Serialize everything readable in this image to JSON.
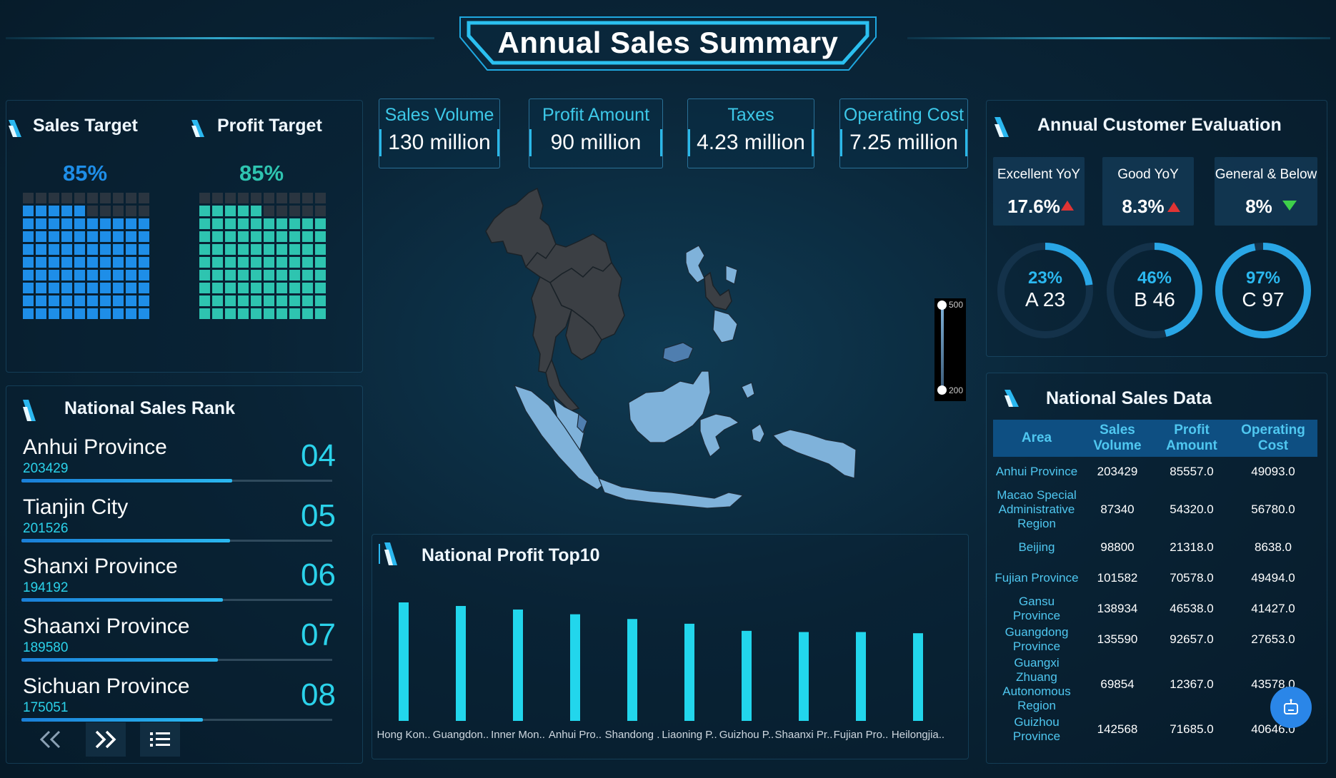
{
  "header": {
    "title": "Annual Sales Summary"
  },
  "targets": {
    "sales": {
      "title": "Sales Target",
      "percent": "85%",
      "fill_fraction": 0.85,
      "color": "#1e8ee8"
    },
    "profit": {
      "title": "Profit Target",
      "percent": "85%",
      "fill_fraction": 0.85,
      "color": "#2ec4b0"
    }
  },
  "rank": {
    "title": "National Sales Rank",
    "items": [
      {
        "name": "Anhui Province",
        "value": "203429",
        "rank": "04"
      },
      {
        "name": "Tianjin City",
        "value": "201526",
        "rank": "05"
      },
      {
        "name": "Shanxi Province",
        "value": "194192",
        "rank": "06"
      },
      {
        "name": "Shaanxi Province",
        "value": "189580",
        "rank": "07"
      },
      {
        "name": "Sichuan Province",
        "value": "175051",
        "rank": "08"
      }
    ],
    "max_value": 300000,
    "nav": {
      "prev_icon": "double-chevron-left-icon",
      "next_icon": "double-chevron-right-icon",
      "list_icon": "list-icon"
    }
  },
  "kpis": [
    {
      "title": "Sales Volume",
      "value": "130 million"
    },
    {
      "title": "Profit Amount",
      "value": "90 million"
    },
    {
      "title": "Taxes",
      "value": "4.23 million"
    },
    {
      "title": "Operating Cost",
      "value": "7.25 million"
    }
  ],
  "map": {
    "legend_max": "500",
    "legend_min": "200",
    "colors": {
      "high": "#7fb2da",
      "low": "#3a3f45"
    }
  },
  "customer": {
    "title": "Annual Customer Evaluation",
    "yoy": [
      {
        "title": "Excellent YoY",
        "value": "17.6%",
        "trend": "up",
        "trend_color": "#e03434"
      },
      {
        "title": "Good YoY",
        "value": "8.3%",
        "trend": "up",
        "trend_color": "#e03434"
      },
      {
        "title": "General & Below",
        "value": "8%",
        "trend": "down",
        "trend_color": "#3ed04a"
      }
    ],
    "rings": [
      {
        "percent_label": "23%",
        "label": "A 23",
        "value": 0.23
      },
      {
        "percent_label": "46%",
        "label": "B 46",
        "value": 0.46
      },
      {
        "percent_label": "97%",
        "label": "C 97",
        "value": 0.97
      }
    ]
  },
  "sales_data": {
    "title": "National Sales Data",
    "columns": [
      "Area",
      "Sales Volume",
      "Profit Amount",
      "Operating Cost"
    ],
    "rows": [
      [
        "Anhui Province",
        "203429",
        "85557.0",
        "49093.0"
      ],
      [
        "Macao Special Administrative Region",
        "87340",
        "54320.0",
        "56780.0"
      ],
      [
        "Beijing",
        "98800",
        "21318.0",
        "8638.0"
      ],
      [
        "Fujian Province",
        "101582",
        "70578.0",
        "49494.0"
      ],
      [
        "Gansu Province",
        "138934",
        "46538.0",
        "41427.0"
      ],
      [
        "Guangdong Province",
        "135590",
        "92657.0",
        "27653.0"
      ],
      [
        "Guangxi Zhuang Autonomous Region",
        "69854",
        "12367.0",
        "43578.0"
      ],
      [
        "Guizhou Province",
        "142568",
        "71685.0",
        "40646.0"
      ]
    ],
    "float_button_icon": "robot-assistant-icon"
  },
  "chart_data": {
    "type": "bar",
    "title": "National Profit Top10",
    "categories": [
      "Hong Kon..",
      "Guangdon..",
      "Inner Mon..",
      "Anhui Pro..",
      "Shandong .",
      "Liaoning P..",
      "Guizhou P..",
      "Shaanxi Pr..",
      "Fujian Pro..",
      "Heilongjia.."
    ],
    "values": [
      100,
      97,
      94,
      90,
      86,
      82,
      76,
      75,
      75,
      74
    ],
    "ylim": [
      0,
      100
    ],
    "grid": false,
    "color": "#22d6ec"
  }
}
